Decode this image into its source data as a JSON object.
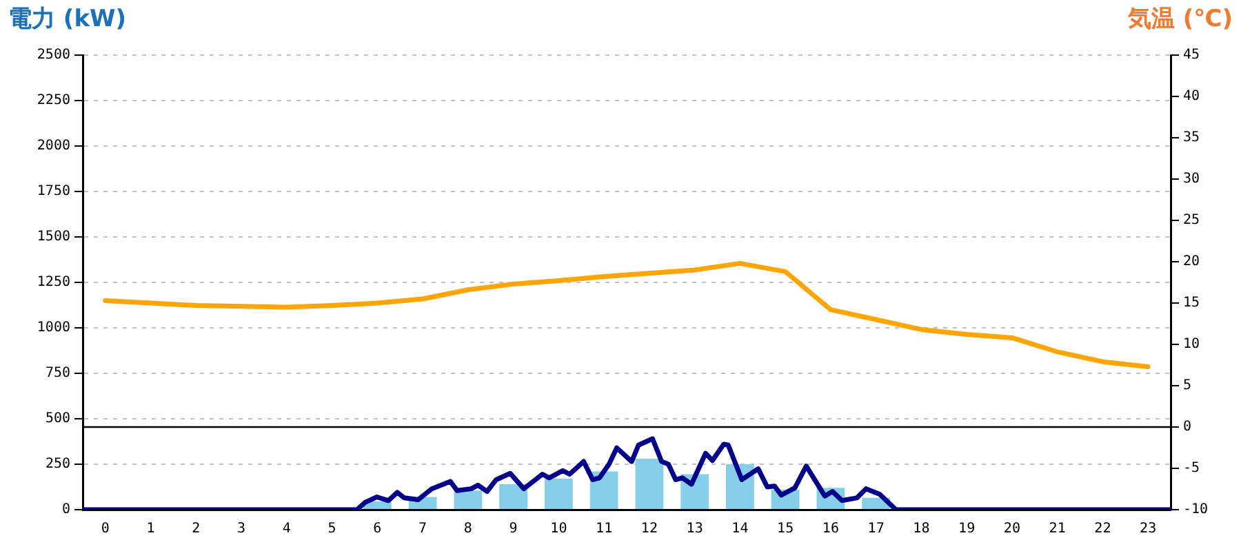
{
  "chart_data": {
    "type": "bar",
    "ylabel": "電力 (kW)",
    "y2label": "気温 (℃)",
    "x": [
      0,
      1,
      2,
      3,
      4,
      5,
      6,
      7,
      8,
      9,
      10,
      11,
      12,
      13,
      14,
      15,
      16,
      17,
      18,
      19,
      20,
      21,
      22,
      23
    ],
    "xlim": [
      -0.5,
      23.5
    ],
    "xticks": [
      0,
      1,
      2,
      3,
      4,
      5,
      6,
      7,
      8,
      9,
      10,
      11,
      12,
      13,
      14,
      15,
      16,
      17,
      18,
      19,
      20,
      21,
      22,
      23
    ],
    "ylim": [
      0,
      2500
    ],
    "yticks": [
      0,
      250,
      500,
      750,
      1000,
      1250,
      1500,
      1750,
      2000,
      2250,
      2500
    ],
    "y2lim": [
      -10,
      45
    ],
    "y2ticks": [
      -10,
      -5,
      0,
      5,
      10,
      15,
      20,
      25,
      30,
      35,
      40,
      45
    ],
    "grid": "y",
    "series": [
      {
        "color": "#87ceeb",
        "values": [
          0,
          0,
          0,
          0,
          0,
          0,
          45,
          70,
          105,
          140,
          170,
          210,
          280,
          195,
          250,
          110,
          120,
          65,
          0,
          0,
          0,
          0,
          0,
          0
        ]
      },
      {
        "type": "line",
        "color": "#00008b",
        "x": [
          -0.5,
          5.55,
          5.73,
          5.99,
          6.24,
          6.44,
          6.59,
          6.9,
          7.2,
          7.61,
          7.76,
          8.07,
          8.22,
          8.42,
          8.62,
          8.93,
          9.23,
          9.64,
          9.79,
          10.09,
          10.24,
          10.55,
          10.75,
          10.9,
          11.11,
          11.28,
          11.61,
          11.76,
          12.07,
          12.27,
          12.42,
          12.58,
          12.73,
          12.93,
          13.24,
          13.39,
          13.64,
          13.74,
          14.04,
          14.4,
          14.6,
          14.76,
          14.91,
          15.21,
          15.46,
          15.87,
          16.04,
          16.25,
          16.58,
          16.78,
          17.08,
          17.44,
          23.5
        ],
        "values": [
          0,
          0,
          40,
          70,
          50,
          95,
          65,
          55,
          115,
          155,
          105,
          115,
          135,
          100,
          165,
          200,
          115,
          195,
          175,
          215,
          195,
          265,
          165,
          175,
          250,
          340,
          265,
          355,
          390,
          265,
          250,
          165,
          175,
          140,
          310,
          270,
          360,
          355,
          165,
          225,
          125,
          130,
          80,
          120,
          240,
          75,
          100,
          50,
          65,
          115,
          85,
          0,
          0
        ]
      },
      {
        "type": "line",
        "axis": "y2",
        "color": "#ffa500",
        "values": [
          15.3,
          15.0,
          14.7,
          14.6,
          14.5,
          14.7,
          15.0,
          15.5,
          16.6,
          17.3,
          17.7,
          18.2,
          18.6,
          19.0,
          19.8,
          18.8,
          14.2,
          13.0,
          11.8,
          11.2,
          10.8,
          9.1,
          7.9,
          7.3
        ]
      }
    ],
    "ref_lines": [
      {
        "axis": "y2",
        "value": 0,
        "color": "#000000"
      }
    ]
  }
}
